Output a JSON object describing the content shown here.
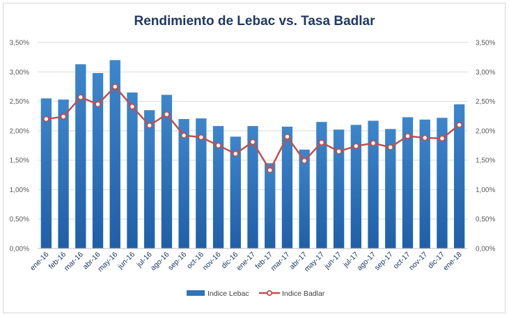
{
  "chart_data": {
    "type": "bar",
    "title": "Rendimiento de Lebac vs. Tasa Badlar",
    "categories": [
      "ene-16",
      "feb-16",
      "mar-16",
      "abr-16",
      "may-16",
      "jun-16",
      "jul-16",
      "ago-16",
      "sep-16",
      "oct-16",
      "nov-16",
      "dic-16",
      "ene-17",
      "feb-17",
      "mar-17",
      "abr-17",
      "may-17",
      "jun-17",
      "jul-17",
      "ago-17",
      "sep-17",
      "oct-17",
      "nov-17",
      "dic-17",
      "ene-18"
    ],
    "series": [
      {
        "name": "Indice Lebac",
        "type": "bar",
        "color": "#2e75b6",
        "values": [
          2.55,
          2.53,
          3.13,
          2.98,
          3.2,
          2.65,
          2.35,
          2.61,
          2.2,
          2.21,
          2.08,
          1.9,
          2.08,
          1.45,
          2.07,
          1.68,
          2.15,
          2.02,
          2.1,
          2.17,
          2.03,
          2.23,
          2.19,
          2.22,
          2.45
        ]
      },
      {
        "name": "Indice Badlar",
        "type": "line",
        "color": "#c0504d",
        "values": [
          2.2,
          2.24,
          2.57,
          2.45,
          2.75,
          2.41,
          2.09,
          2.28,
          1.92,
          1.89,
          1.75,
          1.61,
          1.81,
          1.33,
          1.9,
          1.49,
          1.8,
          1.65,
          1.74,
          1.79,
          1.72,
          1.91,
          1.88,
          1.87,
          2.1
        ]
      }
    ],
    "yticks": [
      "0,00%",
      "0,50%",
      "1,00%",
      "1,50%",
      "2,00%",
      "2,50%",
      "3,00%",
      "3,50%"
    ],
    "ylim": [
      0,
      3.5
    ],
    "grid": true,
    "legend_position": "bottom",
    "secondary_axis": true
  }
}
